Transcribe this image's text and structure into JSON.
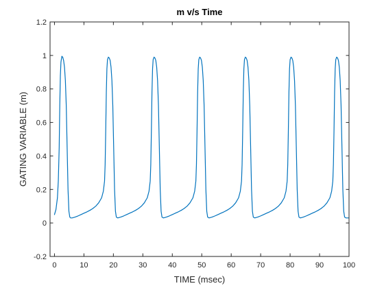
{
  "chart_data": {
    "type": "line",
    "title": "m v/s Time",
    "xlabel": "TIME (msec)",
    "ylabel": "GATING VARIABLE (m)",
    "xlim": [
      -1.5,
      100
    ],
    "ylim": [
      -0.2,
      1.2
    ],
    "xticks": [
      0,
      10,
      20,
      30,
      40,
      50,
      60,
      70,
      80,
      90,
      100
    ],
    "yticks": [
      -0.2,
      0,
      0.2,
      0.4,
      0.6,
      0.8,
      1,
      1.2
    ],
    "xtick_labels": [
      "0",
      "10",
      "20",
      "30",
      "40",
      "50",
      "60",
      "70",
      "80",
      "90",
      "100"
    ],
    "ytick_labels": [
      "-0.2",
      "0",
      "0.2",
      "0.4",
      "0.6",
      "0.8",
      "1",
      "1.2"
    ],
    "grid": false,
    "line_color": "#0072BD",
    "series": [
      {
        "x": [
          0,
          0.5,
          1,
          1.3,
          1.6,
          1.8,
          2.0,
          2.2,
          2.5,
          2.8,
          3.1,
          3.4,
          3.7,
          4.0,
          4.3,
          4.6,
          4.9,
          5.2,
          5.5,
          6.0,
          7.0,
          8.0,
          9.0,
          10.0,
          11.0,
          12.0,
          13.0,
          14.0,
          15.0,
          16.0,
          16.6,
          17.0,
          17.2,
          17.4,
          17.6,
          17.8,
          18.0,
          18.3,
          18.6,
          18.9,
          19.2,
          19.5,
          19.8,
          20.1,
          20.4,
          20.7,
          21.0,
          21.5,
          22.5,
          23.5,
          24.5,
          25.5,
          26.5,
          27.5,
          28.5,
          29.5,
          30.5,
          31.5,
          32.1,
          32.5,
          32.7,
          32.9,
          33.1,
          33.3,
          33.5,
          33.8,
          34.1,
          34.4,
          34.7,
          35.0,
          35.3,
          35.6,
          35.9,
          36.2,
          36.5,
          37.0,
          38.0,
          39.0,
          40.0,
          41.0,
          42.0,
          43.0,
          44.0,
          45.0,
          46.0,
          47.0,
          47.6,
          48.0,
          48.2,
          48.4,
          48.6,
          48.8,
          49.0,
          49.3,
          49.6,
          49.9,
          50.2,
          50.5,
          50.8,
          51.1,
          51.4,
          51.7,
          52.0,
          52.5,
          53.5,
          54.5,
          55.5,
          56.5,
          57.5,
          58.5,
          59.5,
          60.5,
          61.5,
          62.5,
          63.1,
          63.5,
          63.7,
          63.9,
          64.1,
          64.3,
          64.5,
          64.8,
          65.1,
          65.4,
          65.7,
          66.0,
          66.3,
          66.6,
          66.9,
          67.2,
          67.5,
          68.0,
          69.0,
          70.0,
          71.0,
          72.0,
          73.0,
          74.0,
          75.0,
          76.0,
          77.0,
          78.0,
          78.6,
          79.0,
          79.2,
          79.4,
          79.6,
          79.8,
          80.0,
          80.3,
          80.6,
          80.9,
          81.2,
          81.5,
          81.8,
          82.1,
          82.4,
          82.7,
          83.0,
          83.5,
          84.5,
          85.5,
          86.5,
          87.5,
          88.5,
          89.5,
          90.5,
          91.5,
          92.5,
          93.5,
          94.1,
          94.5,
          94.7,
          94.9,
          95.1,
          95.3,
          95.5,
          95.8,
          96.1,
          96.4,
          96.7,
          97.0,
          97.3,
          97.6,
          97.9,
          98.2,
          98.5,
          99.0,
          99.5,
          100
        ],
        "y": [
          0.05,
          0.08,
          0.15,
          0.25,
          0.45,
          0.7,
          0.88,
          0.96,
          0.995,
          0.99,
          0.97,
          0.93,
          0.85,
          0.7,
          0.45,
          0.2,
          0.07,
          0.035,
          0.03,
          0.03,
          0.035,
          0.042,
          0.05,
          0.058,
          0.066,
          0.075,
          0.086,
          0.1,
          0.12,
          0.15,
          0.19,
          0.25,
          0.35,
          0.55,
          0.78,
          0.92,
          0.975,
          0.99,
          0.985,
          0.97,
          0.93,
          0.85,
          0.7,
          0.45,
          0.2,
          0.07,
          0.035,
          0.03,
          0.035,
          0.042,
          0.05,
          0.058,
          0.066,
          0.075,
          0.086,
          0.1,
          0.12,
          0.15,
          0.19,
          0.25,
          0.35,
          0.55,
          0.78,
          0.92,
          0.975,
          0.99,
          0.985,
          0.97,
          0.93,
          0.85,
          0.7,
          0.45,
          0.2,
          0.07,
          0.035,
          0.03,
          0.035,
          0.042,
          0.05,
          0.058,
          0.066,
          0.075,
          0.086,
          0.1,
          0.12,
          0.15,
          0.19,
          0.25,
          0.35,
          0.55,
          0.78,
          0.92,
          0.975,
          0.99,
          0.985,
          0.97,
          0.93,
          0.85,
          0.7,
          0.45,
          0.2,
          0.07,
          0.035,
          0.03,
          0.035,
          0.042,
          0.05,
          0.058,
          0.066,
          0.075,
          0.086,
          0.1,
          0.12,
          0.15,
          0.19,
          0.25,
          0.35,
          0.55,
          0.78,
          0.92,
          0.975,
          0.99,
          0.985,
          0.97,
          0.93,
          0.85,
          0.7,
          0.45,
          0.2,
          0.07,
          0.035,
          0.03,
          0.035,
          0.042,
          0.05,
          0.058,
          0.066,
          0.075,
          0.086,
          0.1,
          0.12,
          0.15,
          0.19,
          0.25,
          0.35,
          0.55,
          0.78,
          0.92,
          0.975,
          0.99,
          0.985,
          0.97,
          0.93,
          0.85,
          0.7,
          0.45,
          0.2,
          0.07,
          0.035,
          0.03,
          0.035,
          0.042,
          0.05,
          0.058,
          0.066,
          0.075,
          0.086,
          0.1,
          0.12,
          0.15,
          0.19,
          0.25,
          0.35,
          0.55,
          0.78,
          0.92,
          0.975,
          0.99,
          0.985,
          0.97,
          0.93,
          0.85,
          0.7,
          0.45,
          0.2,
          0.07,
          0.035,
          0.03,
          0.03,
          0.03
        ]
      }
    ]
  }
}
